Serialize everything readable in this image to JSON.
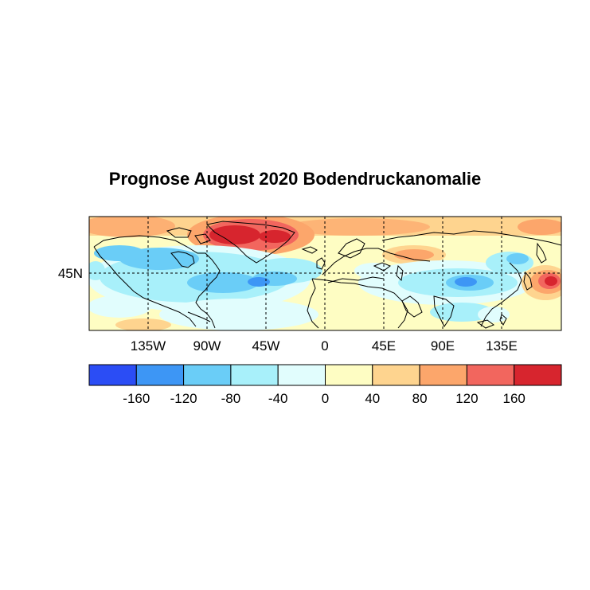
{
  "title": "Prognose August 2020 Bodendruckanomalie",
  "map": {
    "lon_ticks": [
      "135W",
      "90W",
      "45W",
      "0",
      "45E",
      "90E",
      "135E"
    ],
    "lat_ticks": [
      "45N"
    ]
  },
  "colorbar": {
    "colors": [
      "#2b4df5",
      "#3d96f5",
      "#6acdf7",
      "#a8f0fa",
      "#e1fdfd",
      "#fefdc3",
      "#fed48f",
      "#fca66b",
      "#f2665e",
      "#d7252e"
    ],
    "labels": [
      "-160",
      "-120",
      "-80",
      "-40",
      "0",
      "40",
      "80",
      "120",
      "160"
    ]
  }
}
